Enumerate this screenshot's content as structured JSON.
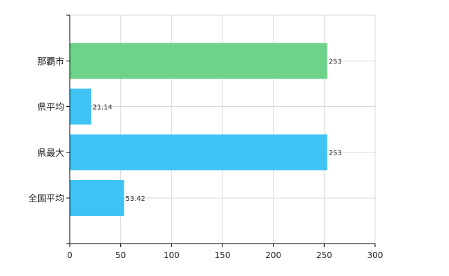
{
  "chart_data": {
    "type": "bar",
    "orientation": "horizontal",
    "categories": [
      "那覇市",
      "県平均",
      "県最大",
      "全国平均"
    ],
    "values": [
      253,
      21.14,
      253,
      53.42
    ],
    "value_labels": [
      "253",
      "21.14",
      "253",
      "53.42"
    ],
    "bar_colors": [
      "#6dd38a",
      "#3fc3f5",
      "#3fc3f5",
      "#3fc3f5"
    ],
    "xlim": [
      0,
      300
    ],
    "xticks": [
      0,
      50,
      100,
      150,
      200,
      250,
      300
    ],
    "grid": true,
    "title": "",
    "xlabel": "",
    "ylabel": ""
  }
}
